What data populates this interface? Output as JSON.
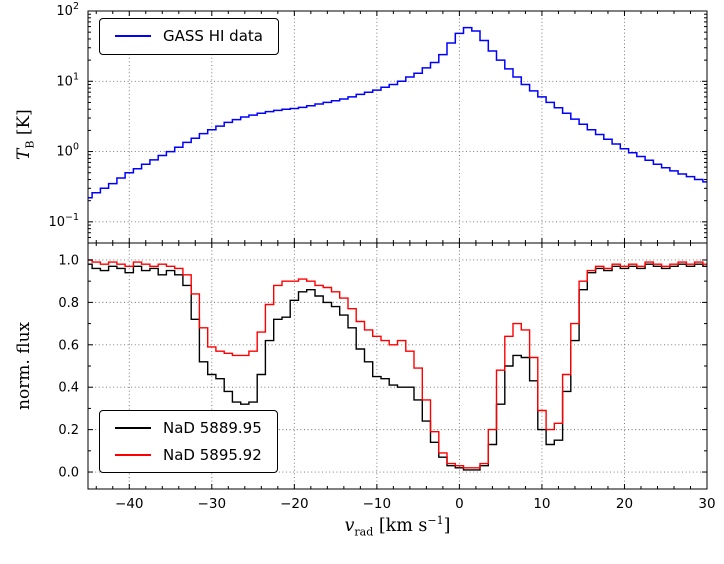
{
  "labels": {
    "xlabel": {
      "var": "v",
      "sub": "rad",
      "unit_pre": " [km s",
      "sup": "−1",
      "unit_post": "]"
    },
    "top_ylabel": {
      "var": "T",
      "sub": "B",
      "unit": " [K]"
    },
    "bottom_ylabel": "norm. flux"
  },
  "chart_data": {
    "type": "line",
    "style": "step-histogram",
    "x_label": "v_rad [km s^-1]",
    "grid": "dotted",
    "x_axis": {
      "lim": [
        -45,
        30
      ],
      "major_ticks": [
        -40,
        -30,
        -20,
        -10,
        0,
        10,
        20,
        30
      ],
      "major_tick_labels": [
        "−40",
        "−30",
        "−20",
        "−10",
        "0",
        "10",
        "20",
        "30"
      ],
      "minor_tick_step": 2
    },
    "x": [
      -45,
      -44,
      -43,
      -42,
      -41,
      -40,
      -39,
      -38,
      -37,
      -36,
      -35,
      -34,
      -33,
      -32,
      -31,
      -30,
      -29,
      -28,
      -27,
      -26,
      -25,
      -24,
      -23,
      -22,
      -21,
      -20,
      -19,
      -18,
      -17,
      -16,
      -15,
      -14,
      -13,
      -12,
      -11,
      -10,
      -9,
      -8,
      -7,
      -6,
      -5,
      -4,
      -3,
      -2,
      -1,
      0,
      1,
      2,
      3,
      4,
      5,
      6,
      7,
      8,
      9,
      10,
      11,
      12,
      13,
      14,
      15,
      16,
      17,
      18,
      19,
      20,
      21,
      22,
      23,
      24,
      25,
      26,
      27,
      28,
      29,
      30
    ],
    "panels": [
      {
        "name": "top",
        "ylabel": "T_B [K]",
        "yscale": "log",
        "ylim": [
          0.05,
          100
        ],
        "ytick_exponents": [
          -1,
          0,
          1,
          2
        ],
        "legend_position": "upper left",
        "series": [
          {
            "name": "GASS HI data",
            "color": "#0000ff",
            "values": [
              0.22,
              0.26,
              0.3,
              0.35,
              0.42,
              0.5,
              0.57,
              0.66,
              0.76,
              0.88,
              1.0,
              1.15,
              1.35,
              1.55,
              1.8,
              2.05,
              2.3,
              2.6,
              2.85,
              3.1,
              3.3,
              3.5,
              3.7,
              3.85,
              4.0,
              4.1,
              4.25,
              4.5,
              4.75,
              5.0,
              5.3,
              5.6,
              6.0,
              6.5,
              7.0,
              7.5,
              8.2,
              9.0,
              10.0,
              11.5,
              13.0,
              15.5,
              18.5,
              24.0,
              35.0,
              48.0,
              58.0,
              52.0,
              38.0,
              27.0,
              20.0,
              15.0,
              11.5,
              9.0,
              7.3,
              6.0,
              5.0,
              4.2,
              3.5,
              2.9,
              2.45,
              2.05,
              1.75,
              1.5,
              1.28,
              1.1,
              0.96,
              0.85,
              0.75,
              0.66,
              0.59,
              0.53,
              0.48,
              0.44,
              0.4,
              0.37
            ]
          }
        ]
      },
      {
        "name": "bottom",
        "ylabel": "norm. flux",
        "yscale": "linear",
        "ylim": [
          -0.08,
          1.08
        ],
        "yticks": [
          0,
          0.2,
          0.4,
          0.6,
          0.8,
          1.0
        ],
        "ytick_labels": [
          "0.0",
          "0.2",
          "0.4",
          "0.6",
          "0.8",
          "1.0"
        ],
        "legend_position": "lower left",
        "series": [
          {
            "name": "NaD 5889.95",
            "color": "#000000",
            "values": [
              0.98,
              0.96,
              0.95,
              0.97,
              0.96,
              0.94,
              0.97,
              0.95,
              0.96,
              0.93,
              0.95,
              0.93,
              0.88,
              0.72,
              0.52,
              0.46,
              0.44,
              0.38,
              0.33,
              0.32,
              0.33,
              0.46,
              0.62,
              0.72,
              0.73,
              0.81,
              0.85,
              0.86,
              0.83,
              0.8,
              0.78,
              0.74,
              0.68,
              0.58,
              0.52,
              0.45,
              0.44,
              0.41,
              0.4,
              0.4,
              0.34,
              0.24,
              0.14,
              0.07,
              0.03,
              0.02,
              0.01,
              0.01,
              0.03,
              0.13,
              0.32,
              0.5,
              0.55,
              0.54,
              0.43,
              0.2,
              0.13,
              0.15,
              0.38,
              0.62,
              0.86,
              0.94,
              0.96,
              0.95,
              0.97,
              0.96,
              0.97,
              0.96,
              0.98,
              0.97,
              0.96,
              0.97,
              0.98,
              0.97,
              0.98,
              0.97
            ]
          },
          {
            "name": "NaD 5895.92",
            "color": "#ff0000",
            "values": [
              1.0,
              0.99,
              0.98,
              0.99,
              0.98,
              0.97,
              0.99,
              0.98,
              0.97,
              0.98,
              0.97,
              0.96,
              0.93,
              0.84,
              0.68,
              0.59,
              0.57,
              0.56,
              0.55,
              0.55,
              0.57,
              0.66,
              0.79,
              0.88,
              0.9,
              0.9,
              0.91,
              0.9,
              0.88,
              0.87,
              0.85,
              0.82,
              0.77,
              0.71,
              0.67,
              0.64,
              0.62,
              0.6,
              0.62,
              0.57,
              0.49,
              0.34,
              0.19,
              0.09,
              0.04,
              0.03,
              0.02,
              0.02,
              0.04,
              0.2,
              0.48,
              0.64,
              0.7,
              0.67,
              0.54,
              0.29,
              0.2,
              0.23,
              0.46,
              0.7,
              0.9,
              0.95,
              0.97,
              0.96,
              0.98,
              0.97,
              0.98,
              0.97,
              0.99,
              0.98,
              0.97,
              0.98,
              0.99,
              0.98,
              0.99,
              0.98
            ]
          }
        ]
      }
    ]
  }
}
